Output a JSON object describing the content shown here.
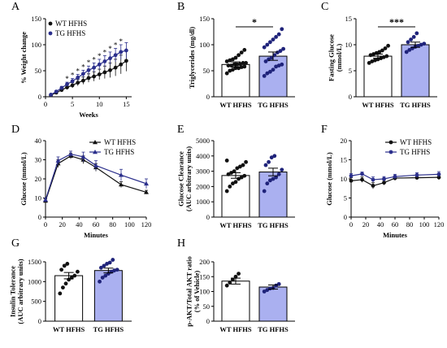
{
  "colors": {
    "wt": "#111111",
    "tg": "#2b2f8c",
    "tg_fill": "#aab0f0",
    "wt_fill": "#ffffff",
    "dot_wt": "#111111",
    "dot_tg": "#1f237a"
  },
  "chart_data": [
    {
      "panel": "A",
      "type": "line",
      "xlabel": "Weeks",
      "ylabel": "% Weight change",
      "xlim": [
        0,
        16
      ],
      "ylim": [
        0,
        150
      ],
      "xticks": [
        0,
        5,
        10,
        15
      ],
      "yticks": [
        0,
        50,
        100,
        150
      ],
      "legend_placement": "top-left",
      "x": [
        1,
        2,
        3,
        4,
        5,
        6,
        7,
        8,
        9,
        10,
        11,
        12,
        13,
        14,
        15
      ],
      "series": [
        {
          "name": "WT HFHS",
          "color_key": "wt",
          "marker": "circle",
          "values": [
            3,
            8,
            13,
            18,
            22,
            27,
            31,
            36,
            39,
            43,
            47,
            51,
            56,
            62,
            69
          ],
          "err": [
            1,
            2,
            3,
            4,
            5,
            6,
            7,
            8,
            9,
            10,
            12,
            14,
            16,
            18,
            20
          ]
        },
        {
          "name": "TG HFHS",
          "color_key": "tg",
          "marker": "circle",
          "values": [
            4,
            10,
            17,
            24,
            30,
            37,
            44,
            51,
            56,
            62,
            68,
            74,
            80,
            86,
            89
          ],
          "err": [
            1,
            2,
            3,
            4,
            5,
            6,
            7,
            8,
            9,
            10,
            11,
            12,
            13,
            14,
            15
          ]
        }
      ],
      "annotations": [
        {
          "x": 4,
          "text": "*"
        },
        {
          "x": 5,
          "text": "*"
        },
        {
          "x": 6,
          "text": "*"
        },
        {
          "x": 7,
          "text": "*"
        },
        {
          "x": 8,
          "text": "*"
        },
        {
          "x": 9,
          "text": "*"
        },
        {
          "x": 10,
          "text": "*"
        },
        {
          "x": 11,
          "text": "*"
        },
        {
          "x": 12,
          "text": "*"
        },
        {
          "x": 13,
          "text": "*"
        },
        {
          "x": 14,
          "text": "*"
        }
      ]
    },
    {
      "panel": "B",
      "type": "bar",
      "ylabel": "Triglycerides (mg/dl)",
      "categories": [
        "WT HFHS",
        "TG HFHS"
      ],
      "values": [
        62,
        78
      ],
      "err": [
        5,
        8
      ],
      "ylim": [
        0,
        150
      ],
      "yticks": [
        0,
        50,
        100,
        150
      ],
      "significance": "*",
      "points": [
        [
          45,
          50,
          52,
          55,
          55,
          57,
          58,
          60,
          60,
          62,
          62,
          63,
          65,
          65,
          68,
          70,
          72,
          75,
          80,
          85,
          90
        ],
        [
          40,
          45,
          48,
          52,
          58,
          60,
          62,
          68,
          72,
          75,
          80,
          85,
          88,
          92,
          95,
          100,
          105,
          110,
          115,
          120,
          130
        ]
      ]
    },
    {
      "panel": "C",
      "type": "bar",
      "ylabel": "Fasting Glucose (mmol/L)",
      "categories": [
        "WT HFHS",
        "TG HFHS"
      ],
      "values": [
        7.8,
        10.0
      ],
      "err": [
        0.4,
        0.5
      ],
      "ylim": [
        0,
        15
      ],
      "yticks": [
        0,
        5,
        10,
        15
      ],
      "significance": "***",
      "points": [
        [
          6.5,
          6.8,
          7.0,
          7.2,
          7.4,
          7.6,
          7.8,
          8.0,
          8.2,
          8.4,
          8.6,
          8.9,
          9.3,
          9.8
        ],
        [
          8.6,
          9.0,
          9.3,
          9.6,
          9.8,
          10.0,
          10.2,
          10.5,
          11.0,
          11.5,
          12.2
        ]
      ]
    },
    {
      "panel": "D",
      "type": "line",
      "xlabel": "Minutes",
      "ylabel": "Glucose (mmol/L)",
      "xlim": [
        0,
        120
      ],
      "ylim": [
        0,
        40
      ],
      "xticks": [
        0,
        20,
        40,
        60,
        80,
        100,
        120
      ],
      "yticks": [
        0,
        10,
        20,
        30,
        40
      ],
      "legend_placement": "top-right",
      "x": [
        0,
        15,
        30,
        45,
        60,
        90,
        120
      ],
      "series": [
        {
          "name": "WT HFHS",
          "color_key": "wt",
          "marker": "triangle",
          "values": [
            8.5,
            28,
            32,
            30,
            26,
            17,
            13
          ],
          "err": [
            1,
            2,
            1.5,
            2,
            2,
            1.5,
            1
          ]
        },
        {
          "name": "TG HFHS",
          "color_key": "tg",
          "marker": "triangle",
          "values": [
            9,
            29.5,
            33,
            31.5,
            27,
            22,
            17.5
          ],
          "err": [
            1,
            2,
            1.5,
            2.5,
            2.5,
            3,
            2.5
          ]
        }
      ]
    },
    {
      "panel": "E",
      "type": "bar",
      "ylabel": "Glucose Clearance (AUC arbitrary units)",
      "categories": [
        "WT HFHS",
        "TG HFHS"
      ],
      "values": [
        2720,
        2950
      ],
      "err": [
        180,
        250
      ],
      "ylim": [
        0,
        5000
      ],
      "yticks": [
        0,
        1000,
        2000,
        3000,
        4000,
        5000
      ],
      "points": [
        [
          1700,
          2000,
          2200,
          2300,
          2500,
          2600,
          2700,
          2800,
          2900,
          3000,
          3200,
          3300,
          3400,
          3600,
          3700
        ],
        [
          1700,
          2200,
          2400,
          2500,
          2600,
          2800,
          3100,
          3400,
          3600,
          3900,
          4000
        ]
      ]
    },
    {
      "panel": "F",
      "type": "line",
      "xlabel": "Minutes",
      "ylabel": "Glucose (mmol/L)",
      "xlim": [
        0,
        120
      ],
      "ylim": [
        0,
        20
      ],
      "xticks": [
        0,
        20,
        40,
        60,
        80,
        100,
        120
      ],
      "yticks": [
        0,
        5,
        10,
        15,
        20
      ],
      "legend_placement": "top-right",
      "x": [
        0,
        15,
        30,
        45,
        60,
        90,
        120
      ],
      "series": [
        {
          "name": "WT HFHS",
          "color_key": "wt",
          "marker": "circle",
          "values": [
            9.5,
            9.8,
            8.2,
            9.0,
            10.2,
            10.3,
            10.4
          ],
          "err": [
            0.8,
            0.7,
            0.8,
            0.6,
            0.6,
            0.5,
            0.6
          ]
        },
        {
          "name": "TG HFHS",
          "color_key": "tg",
          "marker": "circle",
          "values": [
            10.8,
            11.3,
            9.8,
            10.0,
            10.6,
            11.0,
            11.2
          ],
          "err": [
            0.6,
            0.5,
            0.7,
            0.6,
            0.6,
            0.6,
            0.7
          ]
        }
      ]
    },
    {
      "panel": "G",
      "type": "bar",
      "ylabel": "Insulin Tolerance (AUC arbitrary units)",
      "categories": [
        "WT HFHS",
        "TG HFHS"
      ],
      "values": [
        1150,
        1280
      ],
      "err": [
        80,
        60
      ],
      "ylim": [
        0,
        1500
      ],
      "yticks": [
        0,
        500,
        1000,
        1500
      ],
      "points": [
        [
          700,
          850,
          950,
          1050,
          1100,
          1150,
          1250,
          1300,
          1400,
          1450
        ],
        [
          1000,
          1100,
          1150,
          1200,
          1250,
          1280,
          1300,
          1350,
          1400,
          1450,
          1480,
          1550
        ]
      ]
    },
    {
      "panel": "H",
      "type": "bar",
      "ylabel": "p-AKT/Total AKT ratio (% of Vehicle)",
      "categories": [
        "WT HFHS",
        "TG HFHS"
      ],
      "values": [
        135,
        115
      ],
      "err": [
        10,
        7
      ],
      "ylim": [
        0,
        200
      ],
      "yticks": [
        0,
        50,
        100,
        150,
        200
      ],
      "points": [
        [
          120,
          130,
          140,
          150,
          160
        ],
        [
          100,
          105,
          110,
          112,
          120,
          125
        ]
      ]
    }
  ]
}
